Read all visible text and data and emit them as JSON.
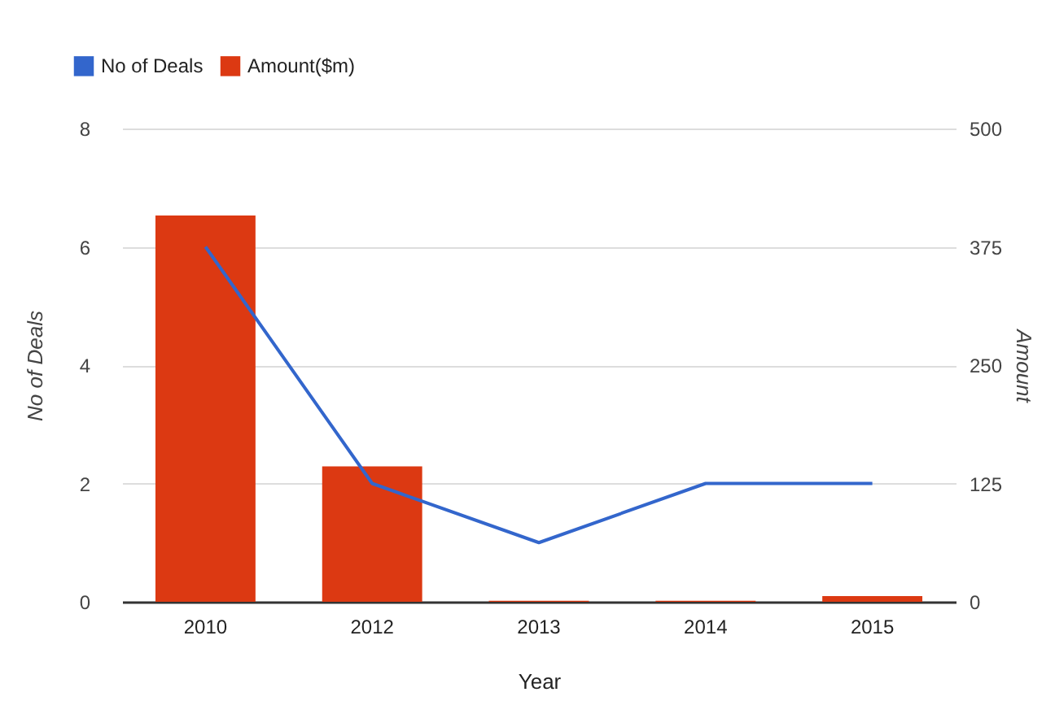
{
  "chart_data": {
    "type": "bar",
    "xlabel": "Year",
    "ylabel": "No of Deals",
    "y2label": "Amount",
    "categories": [
      "2010",
      "2012",
      "2013",
      "2014",
      "2015"
    ],
    "series": [
      {
        "name": "No of Deals",
        "type": "line",
        "color": "#3366cc",
        "values": [
          6,
          2,
          1,
          2,
          2
        ]
      },
      {
        "name": "Amount($m)",
        "type": "bar",
        "color": "#dc3912",
        "axis": "y2",
        "values": [
          408,
          143,
          1,
          1,
          6
        ]
      }
    ],
    "ylim": [
      0,
      8
    ],
    "yticks": [
      0,
      2,
      4,
      6,
      8
    ],
    "y2lim": [
      0,
      500
    ],
    "y2ticks": [
      0,
      125,
      250,
      375,
      500
    ],
    "grid": "y",
    "legend": "top left",
    "marker": "none",
    "line_style": "solid"
  }
}
